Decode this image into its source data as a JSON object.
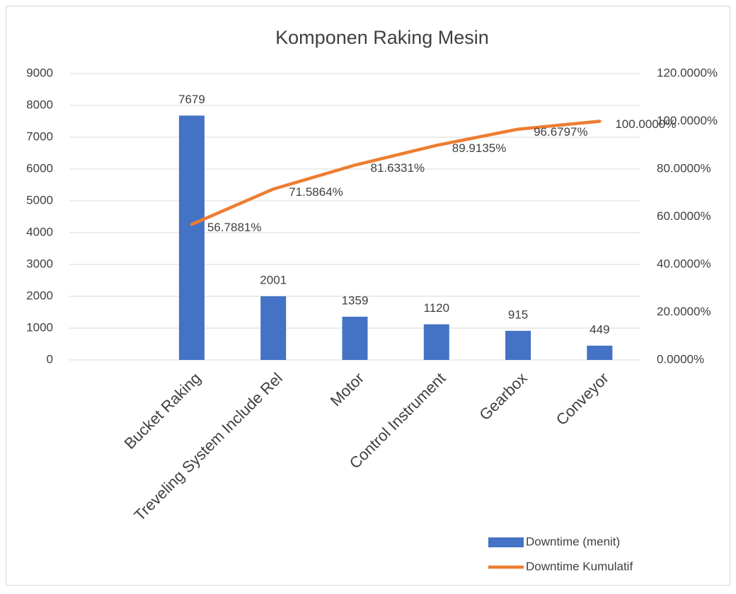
{
  "chart_data": {
    "type": "pareto",
    "title": "Komponen Raking Mesin",
    "categories": [
      null,
      "Bucket Raking",
      "Treveling System Include Rel",
      "Motor",
      "Control Instrument",
      "Gearbox",
      "Conveyor"
    ],
    "series": [
      {
        "name": "Downtime (menit)",
        "type": "bar",
        "color": "#4472c4",
        "values": [
          null,
          7679,
          2001,
          1359,
          1120,
          915,
          449
        ]
      },
      {
        "name": "Downtime Kumulatif",
        "type": "line",
        "axis": "y2",
        "color": "#ed7d31",
        "values": [
          null,
          56.7881,
          71.5864,
          81.6331,
          89.9135,
          96.6797,
          100.0
        ],
        "value_labels": [
          null,
          "56.7881%",
          "71.5864%",
          "81.6331%",
          "89.9135%",
          "96.6797%",
          "100.0000%"
        ]
      }
    ],
    "ylim": [
      0,
      9000
    ],
    "yticks": [
      0,
      1000,
      2000,
      3000,
      4000,
      5000,
      6000,
      7000,
      8000,
      9000
    ],
    "y2lim": [
      0,
      120
    ],
    "y2ticks": [
      {
        "value": 0,
        "label": "0.0000%"
      },
      {
        "value": 20,
        "label": "20.0000%"
      },
      {
        "value": 40,
        "label": "40.0000%"
      },
      {
        "value": 60,
        "label": "60.0000%"
      },
      {
        "value": 80,
        "label": "80.0000%"
      },
      {
        "value": 100,
        "label": "100.0000%"
      },
      {
        "value": 120,
        "label": "120.0000%"
      }
    ],
    "grid": true,
    "legend": "bottom-right"
  }
}
